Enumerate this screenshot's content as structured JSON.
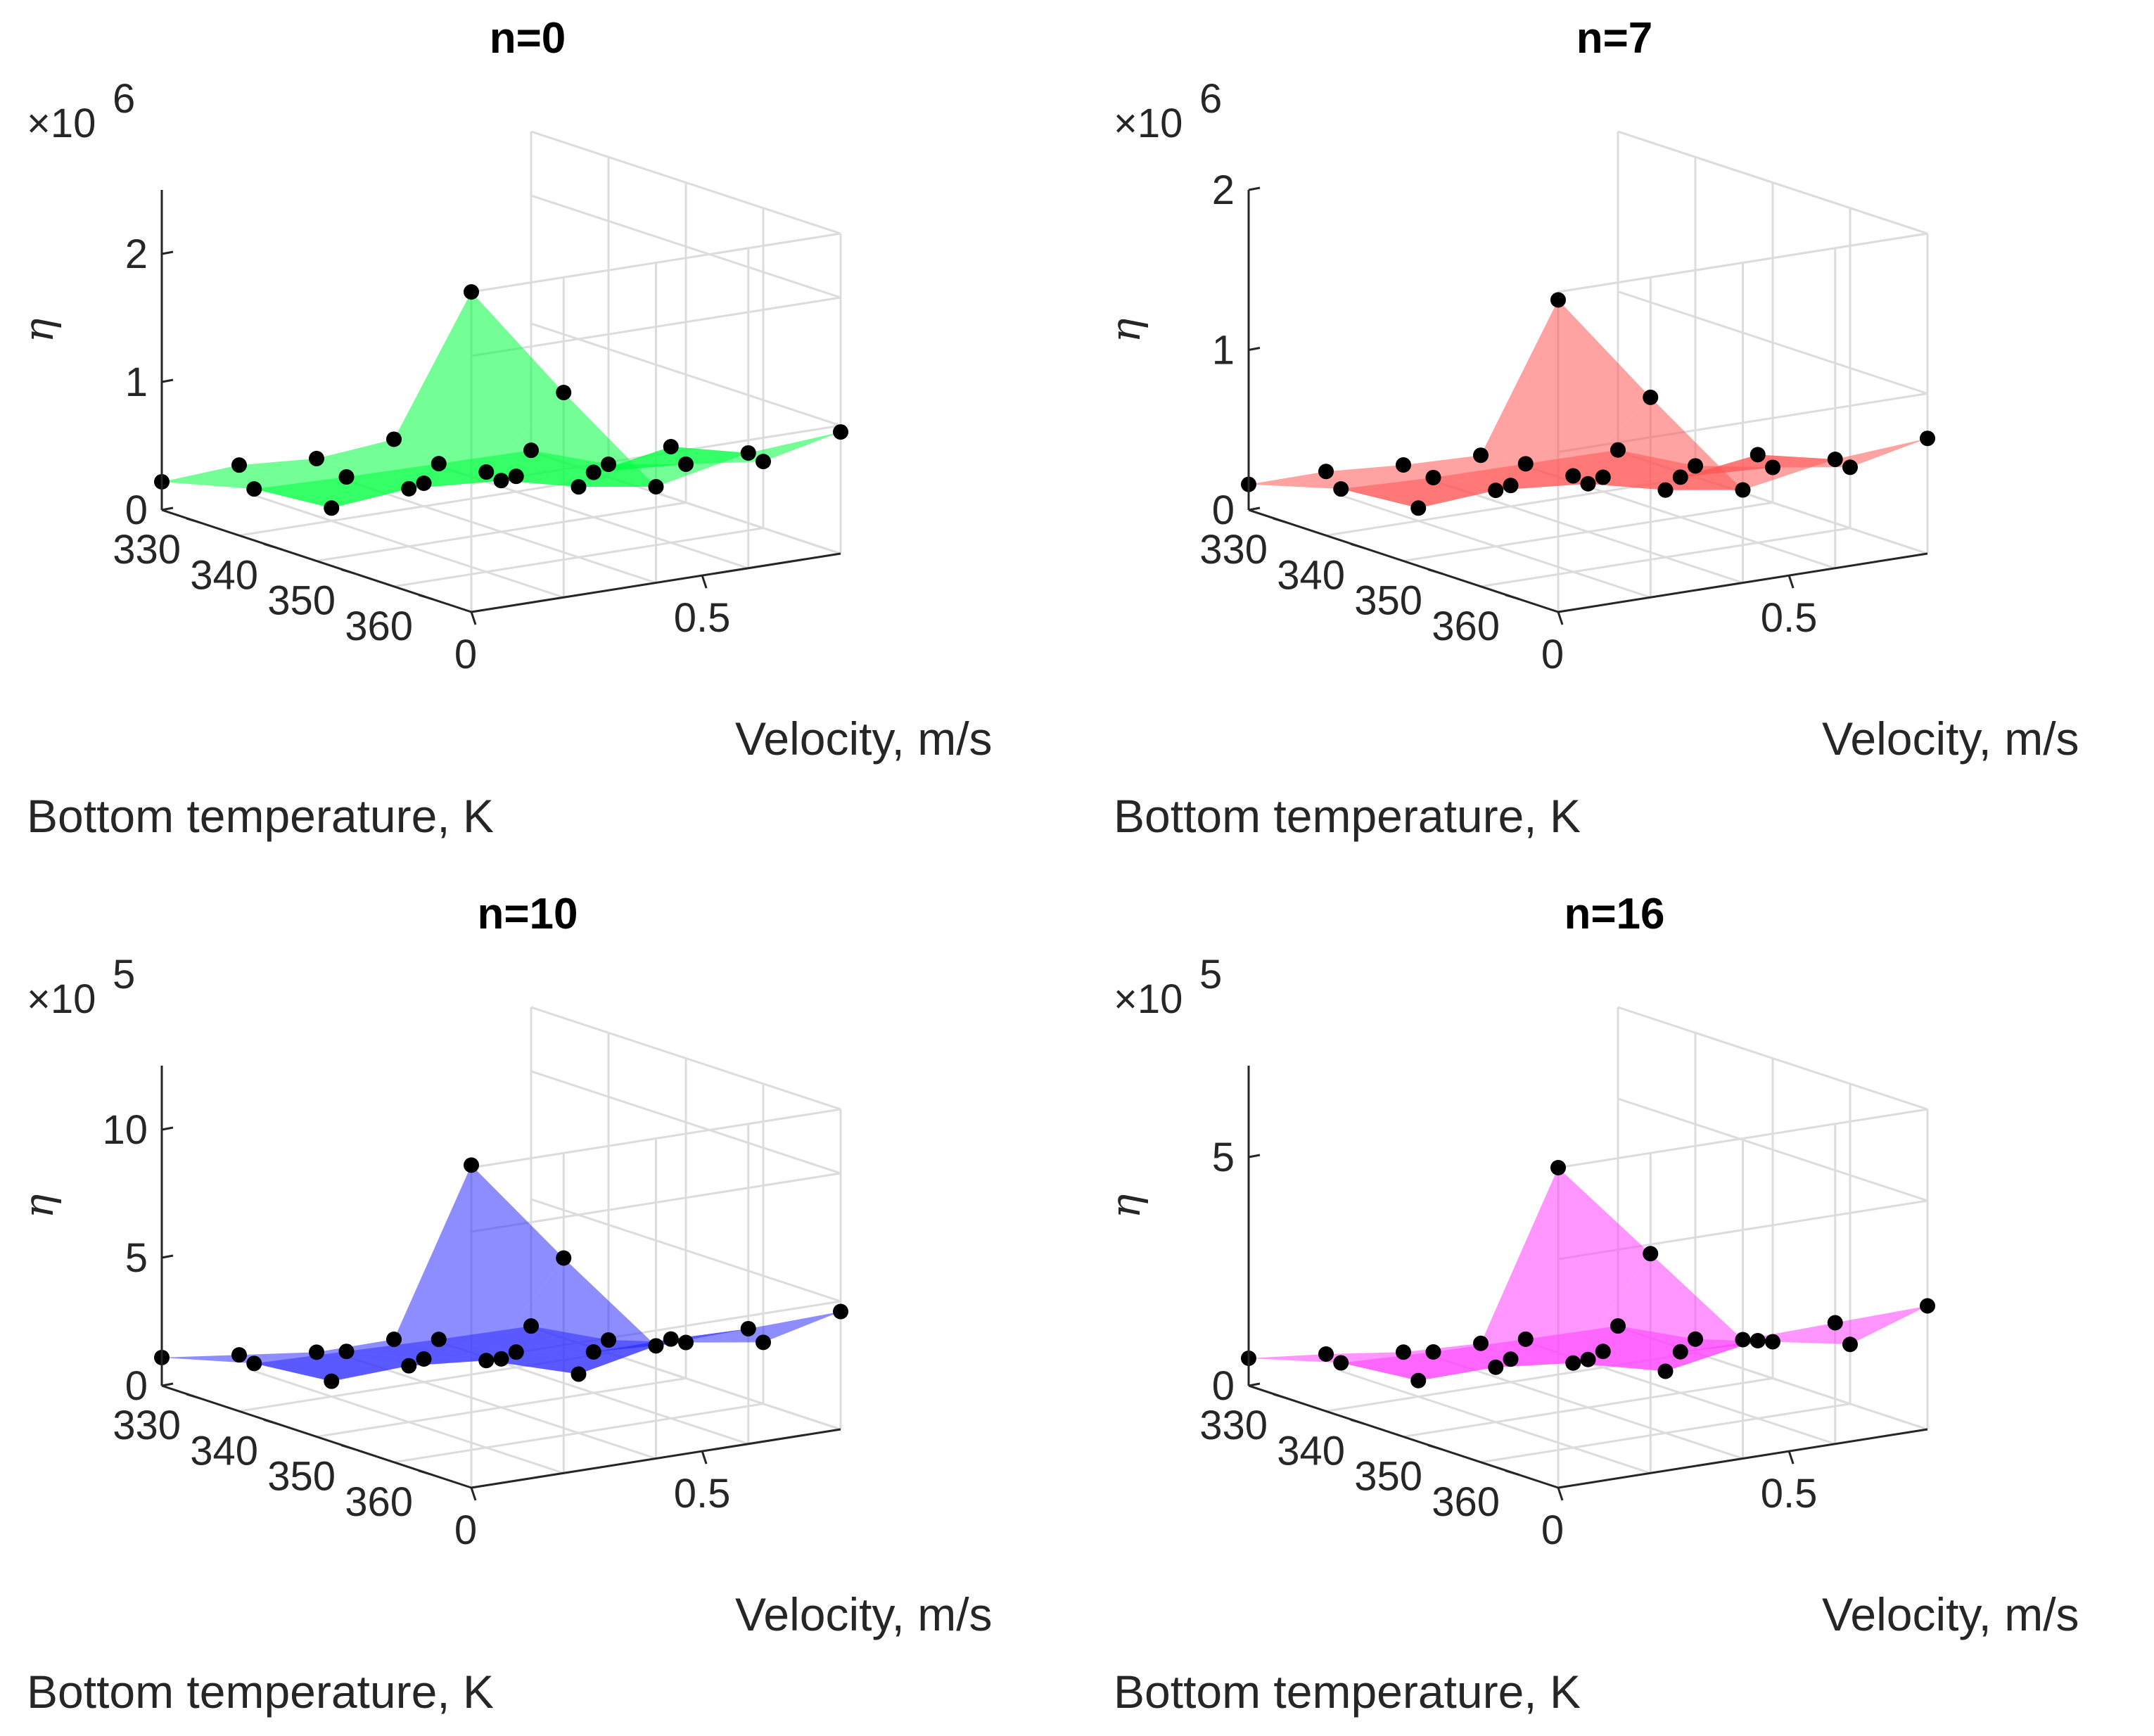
{
  "chart_data": [
    {
      "type": "surface",
      "title": "n=0",
      "xlabel": "Velocity, m/s",
      "ylabel": "Bottom temperature, K",
      "zlabel": "η",
      "exponent_base": "×10",
      "exponent_power": "6",
      "color": "#00ff40",
      "x_ticks": [
        "0",
        "0.5"
      ],
      "y_ticks": [
        "360",
        "350",
        "340",
        "330"
      ],
      "z_ticks": [
        "0",
        "1",
        "2"
      ],
      "z_tick_values": [
        0,
        1,
        2
      ],
      "zlim": [
        0,
        2.5
      ],
      "velocity": [
        0.0,
        0.2,
        0.4,
        0.6,
        0.8
      ],
      "temperature": [
        365,
        355,
        345,
        335,
        325
      ],
      "eta": [
        [
          2.5,
          1.6,
          0.75,
          0.9,
          0.95
        ],
        [
          1.15,
          0.78,
          0.55,
          0.75,
          0.52
        ],
        [
          0.8,
          0.45,
          0.4,
          0.35,
          0.3
        ],
        [
          0.55,
          0.1,
          0.18,
          0.12,
          0.1
        ],
        [
          0.22,
          0.05,
          0.03,
          0.02,
          0.01
        ]
      ]
    },
    {
      "type": "surface",
      "title": "n=7",
      "xlabel": "Velocity, m/s",
      "ylabel": "Bottom temperature, K",
      "zlabel": "η",
      "exponent_base": "×10",
      "exponent_power": "6",
      "color": "#ff5555",
      "x_ticks": [
        "0",
        "0.5"
      ],
      "y_ticks": [
        "360",
        "350",
        "340",
        "330"
      ],
      "z_ticks": [
        "0",
        "1",
        "2"
      ],
      "z_tick_values": [
        0,
        1,
        2
      ],
      "zlim": [
        0,
        2.0
      ],
      "velocity": [
        0.0,
        0.2,
        0.4,
        0.6,
        0.8
      ],
      "temperature": [
        365,
        355,
        345,
        335,
        325
      ],
      "eta": [
        [
          1.95,
          1.25,
          0.58,
          0.68,
          0.72
        ],
        [
          0.82,
          0.6,
          0.42,
          0.55,
          0.38
        ],
        [
          0.6,
          0.35,
          0.3,
          0.25,
          0.22
        ],
        [
          0.4,
          0.08,
          0.13,
          0.09,
          0.07
        ],
        [
          0.16,
          0.04,
          0.02,
          0.015,
          0.01
        ]
      ]
    },
    {
      "type": "surface",
      "title": "n=10",
      "xlabel": "Velocity, m/s",
      "ylabel": "Bottom temperature, K",
      "zlabel": "η",
      "exponent_base": "×10",
      "exponent_power": "5",
      "color": "#3030ff",
      "x_ticks": [
        "0",
        "0.5"
      ],
      "y_ticks": [
        "360",
        "350",
        "340",
        "330"
      ],
      "z_ticks": [
        "0",
        "5",
        "10"
      ],
      "z_tick_values": [
        0,
        5,
        10
      ],
      "zlim": [
        0,
        12.5
      ],
      "velocity": [
        0.0,
        0.2,
        0.4,
        0.6,
        0.8
      ],
      "temperature": [
        365,
        355,
        345,
        335,
        325
      ],
      "eta": [
        [
          12.6,
          8.4,
          4.4,
          4.5,
          4.6
        ],
        [
          4.8,
          3.4,
          2.3,
          3.1,
          2.4
        ],
        [
          3.3,
          2.2,
          1.9,
          1.6,
          1.4
        ],
        [
          2.2,
          0.6,
          0.9,
          0.6,
          0.5
        ],
        [
          1.1,
          0.3,
          0.2,
          0.1,
          0.05
        ]
      ]
    },
    {
      "type": "surface",
      "title": "n=16",
      "xlabel": "Velocity, m/s",
      "ylabel": "Bottom temperature, K",
      "zlabel": "η",
      "exponent_base": "×10",
      "exponent_power": "5",
      "color": "#ff40ff",
      "x_ticks": [
        "0",
        "0.5"
      ],
      "y_ticks": [
        "360",
        "350",
        "340",
        "330"
      ],
      "z_ticks": [
        "0",
        "5"
      ],
      "z_tick_values": [
        0,
        5
      ],
      "zlim": [
        0,
        7.0
      ],
      "velocity": [
        0.0,
        0.2,
        0.4,
        0.6,
        0.8
      ],
      "temperature": [
        365,
        355,
        345,
        335,
        325
      ],
      "eta": [
        [
          7.0,
          4.8,
          2.6,
          2.65,
          2.7
        ],
        [
          2.6,
          1.85,
          1.35,
          1.7,
          1.3
        ],
        [
          1.85,
          1.2,
          1.05,
          0.9,
          0.8
        ],
        [
          1.25,
          0.35,
          0.5,
          0.35,
          0.3
        ],
        [
          0.6,
          0.18,
          0.1,
          0.06,
          0.03
        ]
      ]
    }
  ]
}
